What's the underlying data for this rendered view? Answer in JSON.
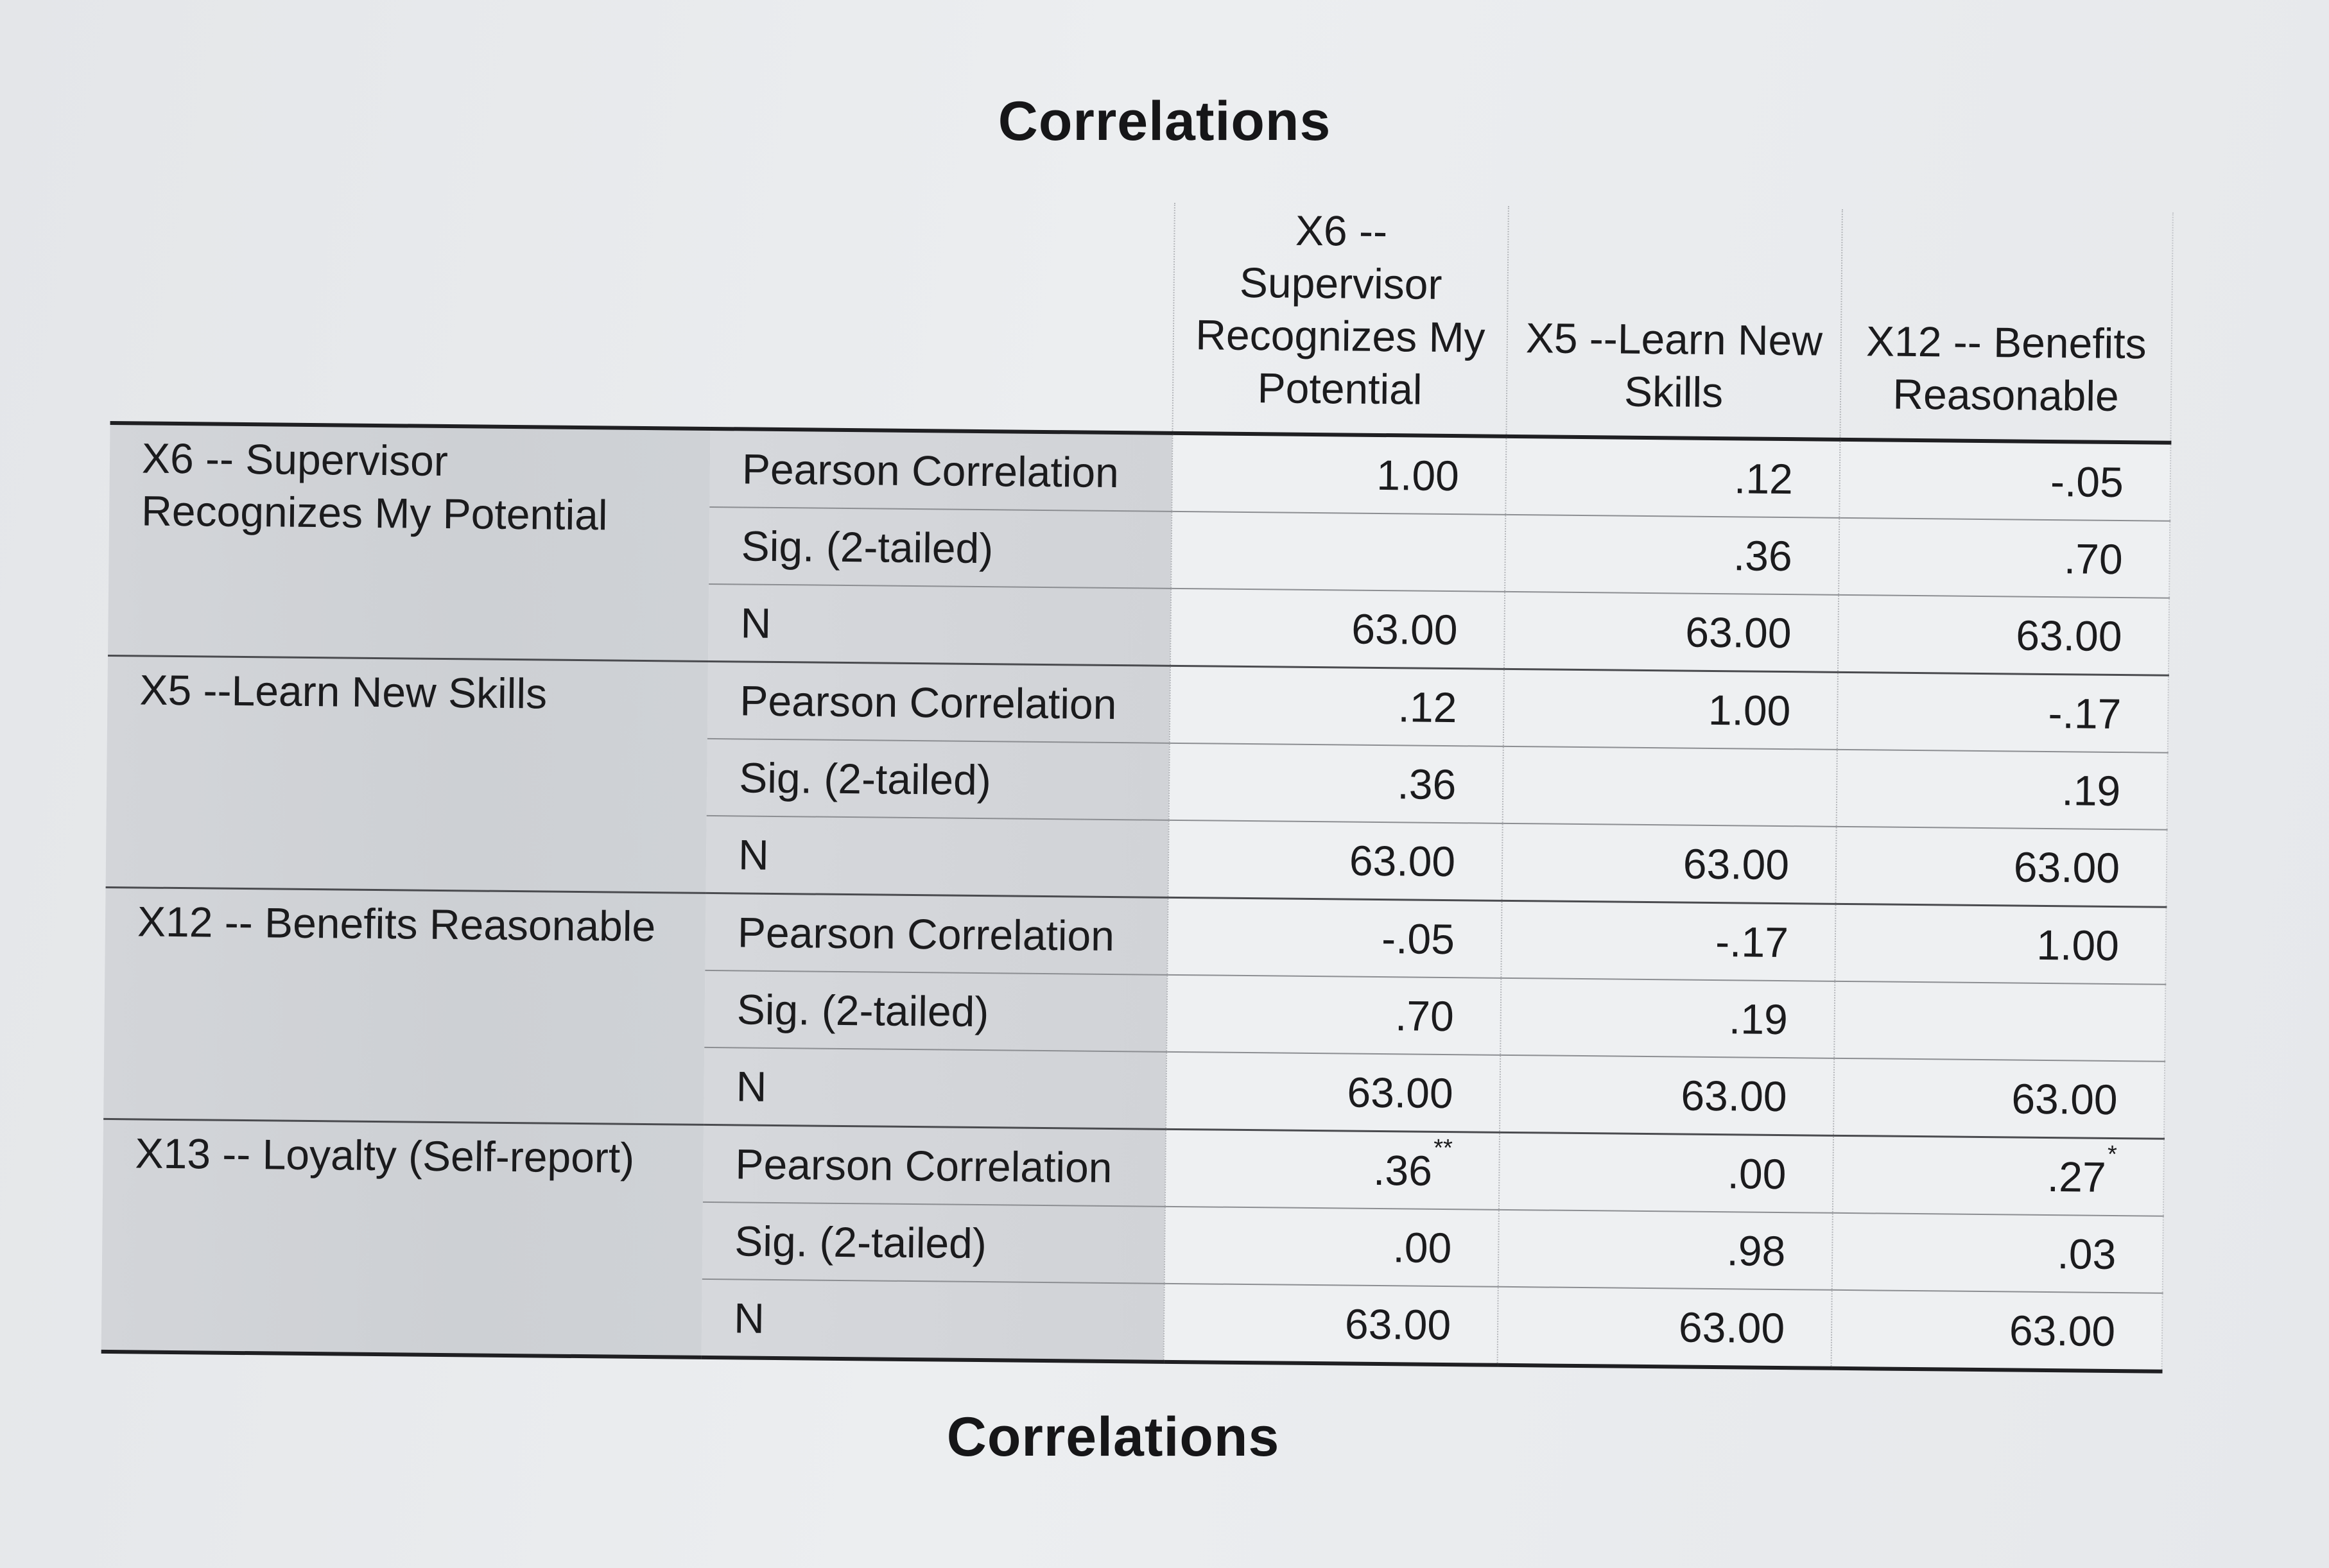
{
  "title": "Correlations",
  "bottom_title": "Correlations",
  "columns": [
    "X6 --\nSupervisor\nRecognizes My\nPotential",
    "X5 --Learn New\nSkills",
    "X12 -- Benefits\nReasonable"
  ],
  "rows": [
    {
      "variable": "X6 -- Supervisor\nRecognizes My Potential",
      "stats": [
        {
          "label": "Pearson Correlation",
          "values": [
            "1.00",
            ".12",
            "-.05"
          ],
          "flags": [
            "",
            "",
            ""
          ]
        },
        {
          "label": "Sig. (2-tailed)",
          "values": [
            "",
            ".36",
            ".70"
          ],
          "flags": [
            "",
            "",
            ""
          ]
        },
        {
          "label": "N",
          "values": [
            "63.00",
            "63.00",
            "63.00"
          ],
          "flags": [
            "",
            "",
            ""
          ]
        }
      ]
    },
    {
      "variable": "X5 --Learn New Skills",
      "stats": [
        {
          "label": "Pearson Correlation",
          "values": [
            ".12",
            "1.00",
            "-.17"
          ],
          "flags": [
            "",
            "",
            ""
          ]
        },
        {
          "label": "Sig. (2-tailed)",
          "values": [
            ".36",
            "",
            ".19"
          ],
          "flags": [
            "",
            "",
            ""
          ]
        },
        {
          "label": "N",
          "values": [
            "63.00",
            "63.00",
            "63.00"
          ],
          "flags": [
            "",
            "",
            ""
          ]
        }
      ]
    },
    {
      "variable": "X12 -- Benefits Reasonable",
      "stats": [
        {
          "label": "Pearson Correlation",
          "values": [
            "-.05",
            "-.17",
            "1.00"
          ],
          "flags": [
            "",
            "",
            ""
          ]
        },
        {
          "label": "Sig. (2-tailed)",
          "values": [
            ".70",
            ".19",
            ""
          ],
          "flags": [
            "",
            "",
            ""
          ]
        },
        {
          "label": "N",
          "values": [
            "63.00",
            "63.00",
            "63.00"
          ],
          "flags": [
            "",
            "",
            ""
          ]
        }
      ]
    },
    {
      "variable": "X13 -- Loyalty (Self-report)",
      "stats": [
        {
          "label": "Pearson Correlation",
          "values": [
            ".36",
            ".00",
            ".27"
          ],
          "flags": [
            "**",
            "",
            "*"
          ]
        },
        {
          "label": "Sig. (2-tailed)",
          "values": [
            ".00",
            ".98",
            ".03"
          ],
          "flags": [
            "",
            "",
            ""
          ]
        },
        {
          "label": "N",
          "values": [
            "63.00",
            "63.00",
            "63.00"
          ],
          "flags": [
            "",
            "",
            ""
          ]
        }
      ]
    }
  ]
}
